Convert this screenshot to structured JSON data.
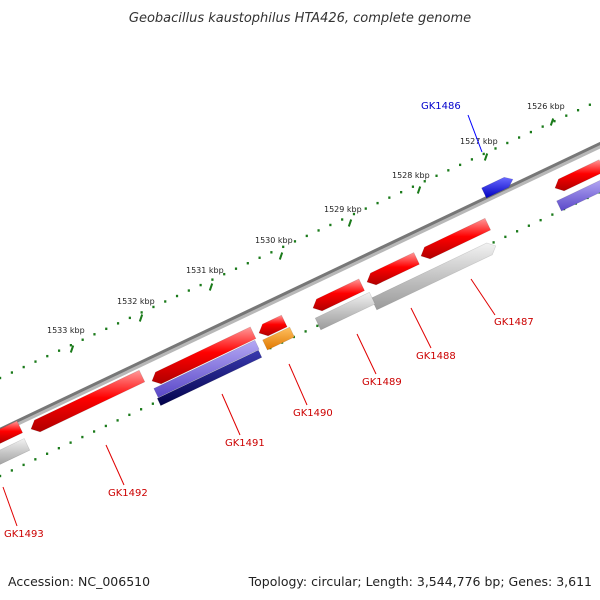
{
  "title": "Geobacillus kaustophilus HTA426, complete genome",
  "footer": {
    "accession": "Accession: NC_006510",
    "topology": "Topology: circular; Length: 3,544,776 bp; Genes: 3,611"
  },
  "colors": {
    "backbone": "#777777",
    "ruler_ticks": "#1a7a1a",
    "forward_gene": "#ff0000",
    "reverse_gene_label": "#cc0000",
    "highlight_gene": "#0000ff",
    "highlight_gene_label": "#0000cc",
    "cds_feature": "#bbbbbb",
    "blast_hit_light": "#7a6ad8",
    "blast_hit_dark": "#0a0a7a",
    "special_feature": "#ff9900"
  },
  "ruler_labels": [
    "1526 kbp",
    "1527 kbp",
    "1528 kbp",
    "1529 kbp",
    "1530 kbp",
    "1531 kbp",
    "1532 kbp",
    "1533 kbp"
  ],
  "gene_labels": [
    "GK1486",
    "GK1487",
    "GK1488",
    "GK1489",
    "GK1490",
    "GK1491",
    "GK1492",
    "GK1493"
  ]
}
